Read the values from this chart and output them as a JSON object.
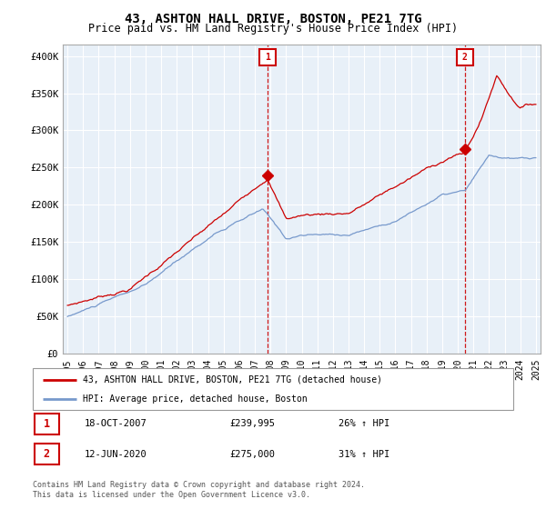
{
  "title": "43, ASHTON HALL DRIVE, BOSTON, PE21 7TG",
  "subtitle": "Price paid vs. HM Land Registry's House Price Index (HPI)",
  "ylabel_ticks": [
    "£0",
    "£50K",
    "£100K",
    "£150K",
    "£200K",
    "£250K",
    "£300K",
    "£350K",
    "£400K"
  ],
  "ytick_values": [
    0,
    50000,
    100000,
    150000,
    200000,
    250000,
    300000,
    350000,
    400000
  ],
  "ylim": [
    0,
    415000
  ],
  "background_color": "#ffffff",
  "chart_bg_color": "#e8f0f8",
  "grid_color": "#ffffff",
  "line_color_red": "#cc0000",
  "line_color_blue": "#7799cc",
  "annotation_box_color": "#cc0000",
  "legend_label_red": "43, ASHTON HALL DRIVE, BOSTON, PE21 7TG (detached house)",
  "legend_label_blue": "HPI: Average price, detached house, Boston",
  "annotation1": {
    "number": "1",
    "date": "18-OCT-2007",
    "price": "£239,995",
    "pct": "26% ↑ HPI",
    "x_year": 2007.8,
    "y_price": 239995
  },
  "annotation2": {
    "number": "2",
    "date": "12-JUN-2020",
    "price": "£275,000",
    "pct": "31% ↑ HPI",
    "x_year": 2020.45,
    "y_price": 275000
  },
  "footer": "Contains HM Land Registry data © Crown copyright and database right 2024.\nThis data is licensed under the Open Government Licence v3.0.",
  "xlim": [
    1994.7,
    2025.3
  ],
  "xtick_years": [
    1995,
    1996,
    1997,
    1998,
    1999,
    2000,
    2001,
    2002,
    2003,
    2004,
    2005,
    2006,
    2007,
    2008,
    2009,
    2010,
    2011,
    2012,
    2013,
    2014,
    2015,
    2016,
    2017,
    2018,
    2019,
    2020,
    2021,
    2022,
    2023,
    2024,
    2025
  ]
}
